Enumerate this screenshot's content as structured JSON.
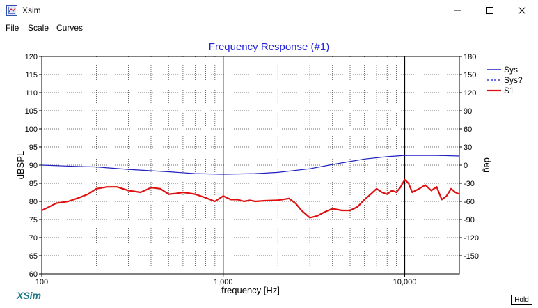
{
  "window": {
    "title": "Xsim",
    "icon": "xsim-app-icon",
    "controls": [
      "minimize-icon",
      "maximize-icon",
      "close-icon"
    ]
  },
  "menu": {
    "items": [
      {
        "label": "File"
      },
      {
        "label": "Scale"
      },
      {
        "label": "Curves"
      }
    ]
  },
  "plot": {
    "title": "Frequency Response (#1)"
  },
  "footer": {
    "brand": "XSim",
    "hold_label": "Hold"
  },
  "colors": {
    "sys": "#1f1fc0",
    "sys_q": "#3a3ae0",
    "s1": "#e01010",
    "title": "#2424d8",
    "brand": "#1f7a8c"
  },
  "chart_data": {
    "type": "line",
    "title": "Frequency Response (#1)",
    "xlabel": "frequency [Hz]",
    "ylabel": "dBSPL",
    "y2label": "deg",
    "xscale": "log",
    "xlim": [
      100,
      20000
    ],
    "ylim": [
      60,
      120
    ],
    "y2lim": [
      -180,
      180
    ],
    "xticks": [
      100,
      1000,
      10000
    ],
    "xtick_labels": [
      "100",
      "1,000",
      "10,000"
    ],
    "yticks": [
      60,
      65,
      70,
      75,
      80,
      85,
      90,
      95,
      100,
      105,
      110,
      115,
      120
    ],
    "y2ticks": [
      -150,
      -120,
      -90,
      -60,
      -30,
      0,
      30,
      60,
      90,
      120,
      150,
      180
    ],
    "grid": true,
    "legend": "top-right",
    "series": [
      {
        "name": "Sys",
        "axis": "right",
        "style": "solid",
        "x": [
          100,
          150,
          200,
          300,
          500,
          700,
          1000,
          1500,
          2000,
          3000,
          4000,
          5000,
          6000,
          8000,
          10000,
          12000,
          15000,
          20000
        ],
        "values": [
          0,
          -2,
          -3,
          -7,
          -11,
          -14,
          -15,
          -14,
          -12,
          -6,
          1,
          6,
          10,
          14,
          16,
          16,
          16,
          15
        ]
      },
      {
        "name": "Sys?",
        "axis": "right",
        "style": "dashed",
        "x": [],
        "values": []
      },
      {
        "name": "S1",
        "axis": "left",
        "style": "solid",
        "x": [
          100,
          110,
          120,
          140,
          160,
          180,
          200,
          230,
          260,
          300,
          350,
          400,
          450,
          500,
          550,
          600,
          700,
          800,
          900,
          1000,
          1100,
          1200,
          1300,
          1400,
          1500,
          1700,
          2000,
          2300,
          2500,
          2700,
          3000,
          3300,
          3600,
          4000,
          4500,
          5000,
          5500,
          6000,
          6500,
          7000,
          7500,
          8000,
          8500,
          9000,
          9500,
          10000,
          10500,
          11000,
          12000,
          13000,
          14000,
          15000,
          16000,
          17000,
          18000,
          19000,
          20000
        ],
        "values": [
          77.5,
          78.5,
          79.5,
          80,
          81,
          82,
          83.5,
          84,
          84,
          83,
          82.5,
          83.8,
          83.5,
          82,
          82.2,
          82.5,
          82,
          81,
          80,
          81.5,
          80.5,
          80.5,
          80,
          80.3,
          80,
          80.2,
          80.3,
          80.8,
          79.5,
          77.5,
          75.5,
          76,
          77,
          78,
          77.5,
          77.5,
          78.5,
          80.5,
          82,
          83.5,
          82.5,
          82,
          83,
          82.5,
          84,
          86,
          85,
          82.5,
          83.5,
          84.5,
          83,
          84,
          80.5,
          81.5,
          83.5,
          82.5,
          82
        ]
      }
    ]
  }
}
